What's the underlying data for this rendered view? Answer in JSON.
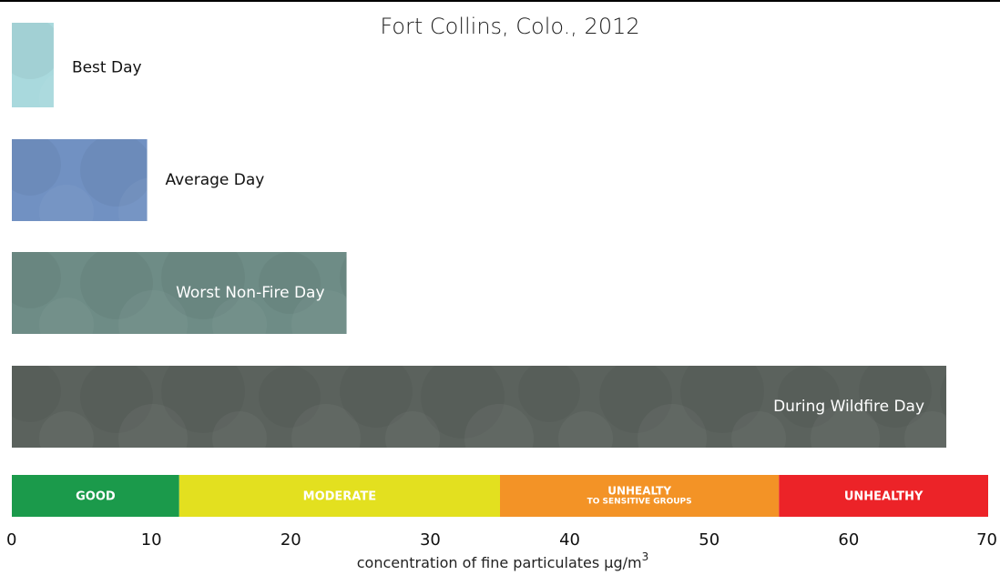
{
  "chart_data": {
    "type": "bar",
    "orientation": "horizontal",
    "title": "Fort Collins, Colo., 2012",
    "categories": [
      "Best Day",
      "Average Day",
      "Worst Non-Fire Day",
      "During Wildfire Day"
    ],
    "values": [
      3,
      9.7,
      24,
      67
    ],
    "colors": [
      "#a9d9dd",
      "#7191c2",
      "#6e8c86",
      "#5b625d"
    ],
    "xlim": [
      0,
      70
    ],
    "xticks": [
      0,
      10,
      20,
      30,
      40,
      50,
      60,
      70
    ],
    "x_label": "concentration of fine particulates µg/m",
    "x_label_superscript": "3",
    "bands": [
      {
        "name": "GOOD",
        "from": 0,
        "to": 12,
        "color": "#1b9a4b"
      },
      {
        "name": "MODERATE",
        "from": 12,
        "to": 35,
        "color": "#e3e01f"
      },
      {
        "name": "UNHEALTY",
        "subname": "TO SENSITIVE GROUPS",
        "from": 35,
        "to": 55,
        "color": "#f39326"
      },
      {
        "name": "UNHEALTHY",
        "from": 55,
        "to": 70,
        "color": "#ec2328"
      }
    ]
  }
}
